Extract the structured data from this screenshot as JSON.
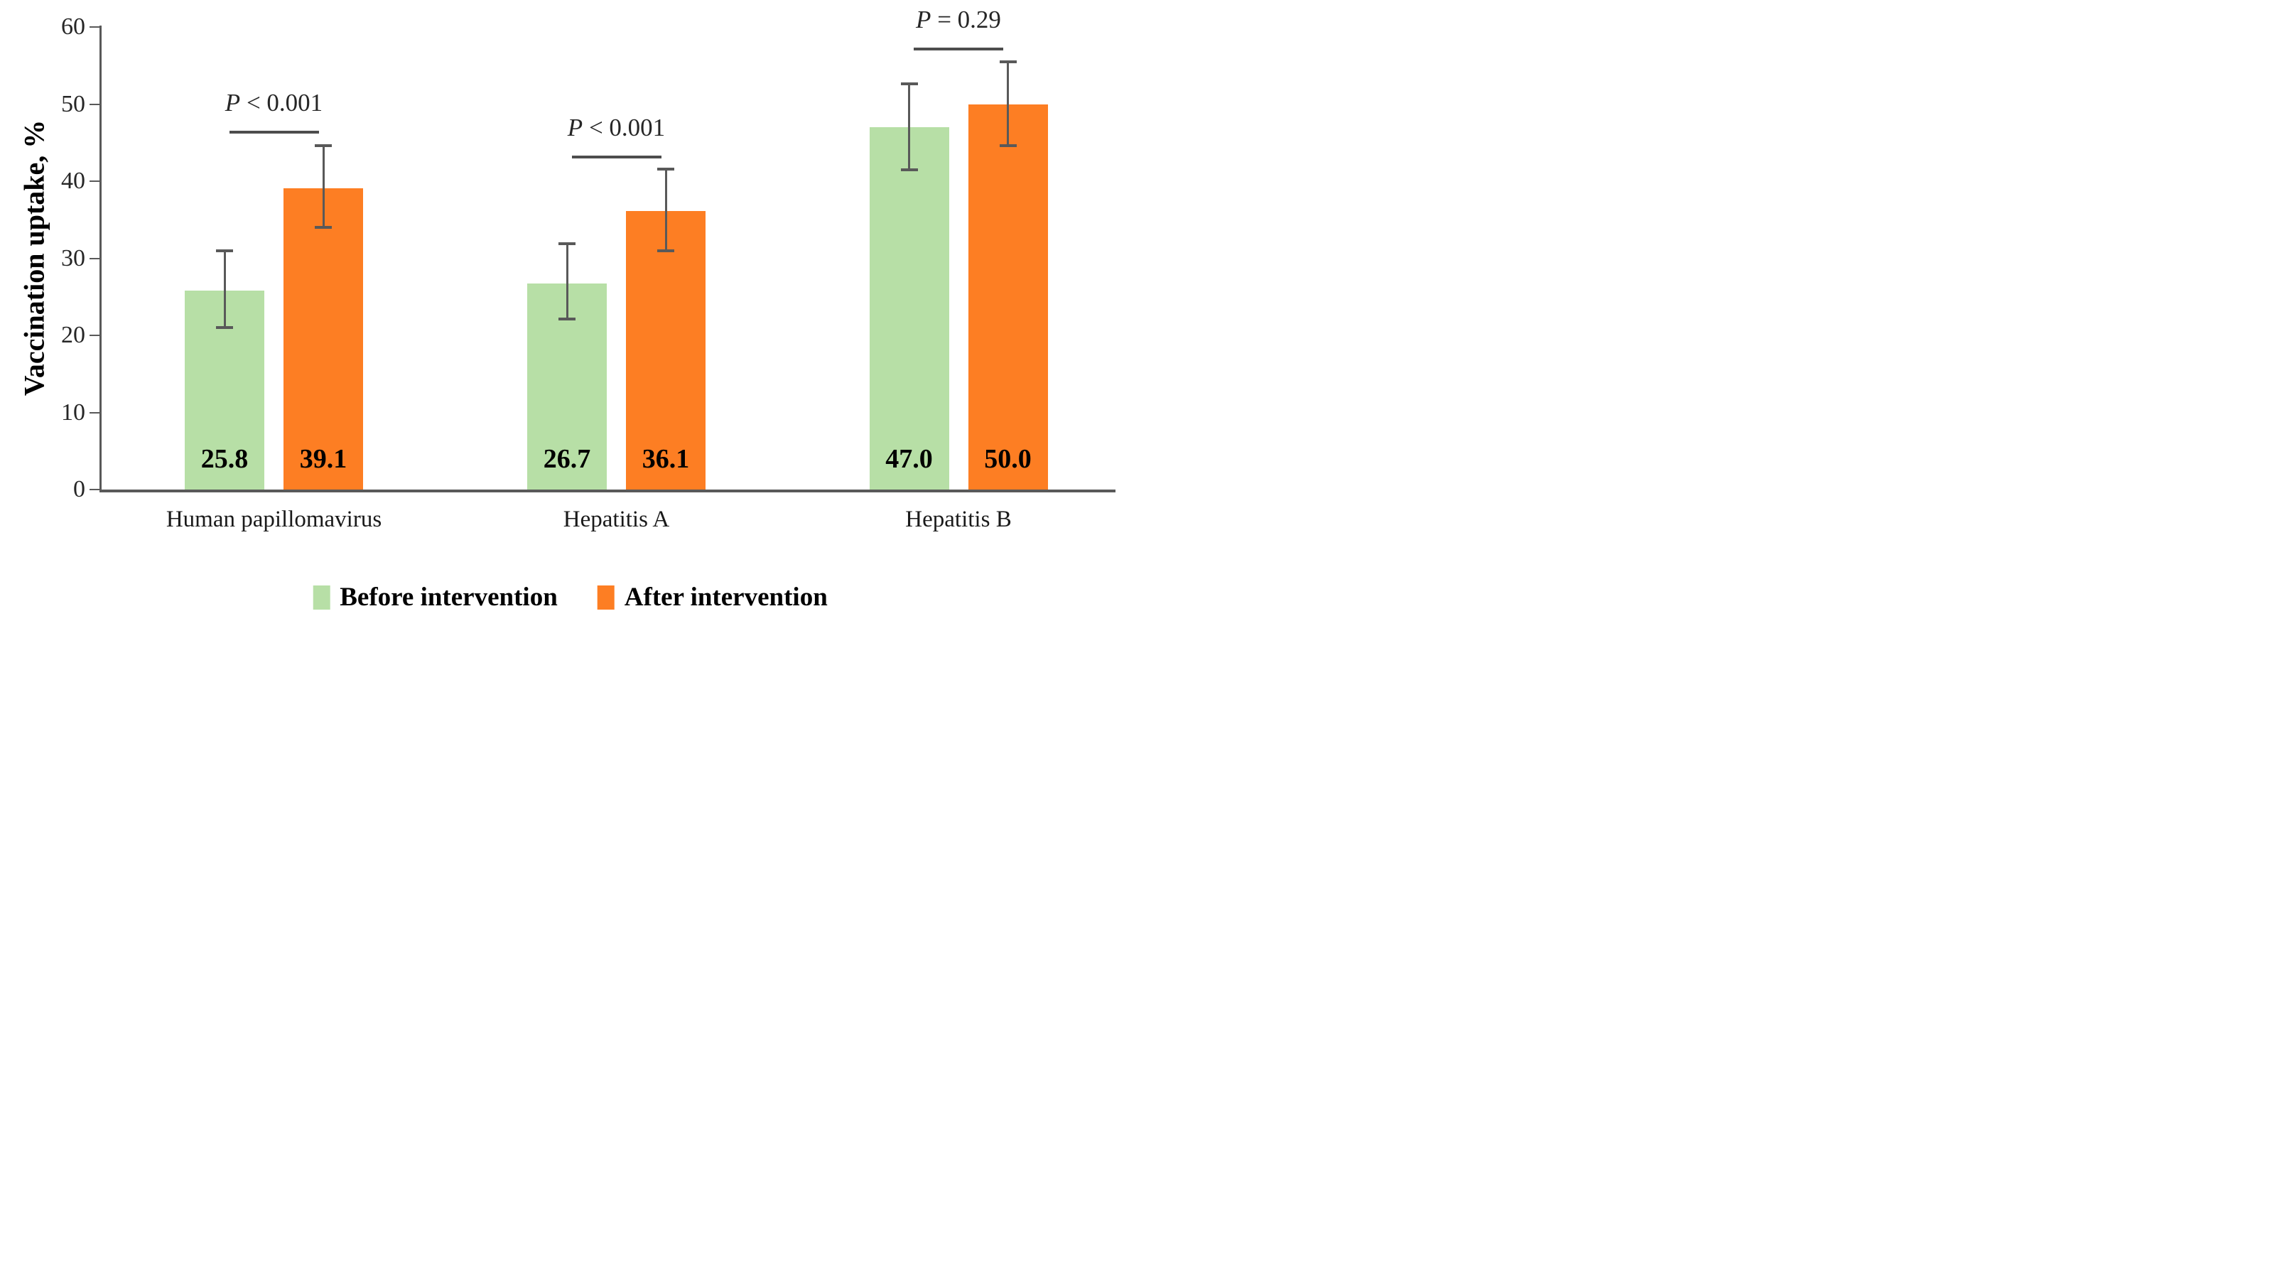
{
  "figure": {
    "background": "#ffffff",
    "axis_color": "#595959",
    "error_bar_color": "#595959",
    "sig_line_color": "#4d4d4d",
    "p_text_color": "#262626",
    "tick_label_color": "#262626",
    "value_label_color": "#000000"
  },
  "chart_data": {
    "type": "bar",
    "title": "",
    "xlabel": "",
    "ylabel": "Vaccination uptake, %",
    "ylim": [
      0,
      60
    ],
    "yticks": [
      0,
      10,
      20,
      30,
      40,
      50,
      60
    ],
    "grid": "off",
    "legend_position": "bottom",
    "categories": [
      "Human papillomavirus",
      "Hepatitis A",
      "Hepatitis B"
    ],
    "series": [
      {
        "name": "Before intervention",
        "color": "#b7dfa6",
        "values": [
          25.8,
          26.7,
          47.0
        ],
        "value_labels": [
          "25.8",
          "26.7",
          "47.0"
        ],
        "error_low": [
          21.0,
          22.1,
          41.5
        ],
        "error_high": [
          31.0,
          31.9,
          52.6
        ]
      },
      {
        "name": "After intervention",
        "color": "#fd7e23",
        "values": [
          39.1,
          36.1,
          50.0
        ],
        "value_labels": [
          "39.1",
          "36.1",
          "50.0"
        ],
        "error_low": [
          34.0,
          31.0,
          44.6
        ],
        "error_high": [
          44.6,
          41.6,
          55.5
        ]
      }
    ],
    "significance": [
      {
        "label": "P < 0.001",
        "level": 46.5
      },
      {
        "label": "P < 0.001",
        "level": 43.3
      },
      {
        "label": "P = 0.29",
        "level": 57.3
      }
    ]
  }
}
